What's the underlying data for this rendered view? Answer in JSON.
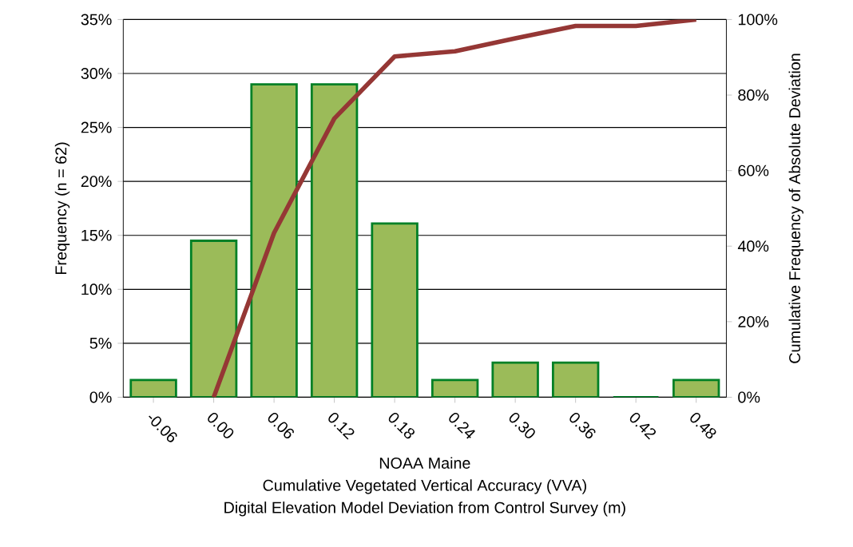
{
  "chart_data": {
    "type": "bar",
    "title": "NOAA Maine",
    "subtitle": "Cumulative Vegetated Vertical Accuracy (VVA)",
    "xlabel": "Digital Elevation Model Deviation from Control Survey (m)",
    "ylabel": "Frequency (n = 62)",
    "y2label": "Cumulative Frequency of Absolute Deviation",
    "categories": [
      "-0.06",
      "0.00",
      "0.06",
      "0.12",
      "0.18",
      "0.24",
      "0.30",
      "0.36",
      "0.42",
      "0.48"
    ],
    "series": [
      {
        "color": "#9bbb59",
        "values": [
          1.6,
          14.5,
          29.0,
          29.0,
          16.1,
          1.6,
          3.2,
          3.2,
          0,
          1.6
        ]
      },
      {
        "type": "line",
        "axis": "y2",
        "color": "#953735",
        "values": [
          null,
          0,
          43.5,
          73.8,
          90.2,
          91.6,
          95,
          98.3,
          98.3,
          100
        ]
      }
    ],
    "ylim": [
      0,
      35
    ],
    "yticks": [
      {
        "value": 0,
        "label": "0%"
      },
      {
        "value": 5,
        "label": "5%"
      },
      {
        "value": 10,
        "label": "10%"
      },
      {
        "value": 15,
        "label": "15%"
      },
      {
        "value": 20,
        "label": "20%"
      },
      {
        "value": 25,
        "label": "25%"
      },
      {
        "value": 30,
        "label": "30%"
      },
      {
        "value": 35,
        "label": "35%"
      }
    ],
    "y2lim": [
      0,
      100
    ],
    "y2ticks": [
      {
        "value": 0,
        "label": "0%"
      },
      {
        "value": 20,
        "label": "20%"
      },
      {
        "value": 40,
        "label": "40%"
      },
      {
        "value": 60,
        "label": "60%"
      },
      {
        "value": 80,
        "label": "80%"
      },
      {
        "value": 100,
        "label": "100%"
      }
    ],
    "grid": "y"
  }
}
